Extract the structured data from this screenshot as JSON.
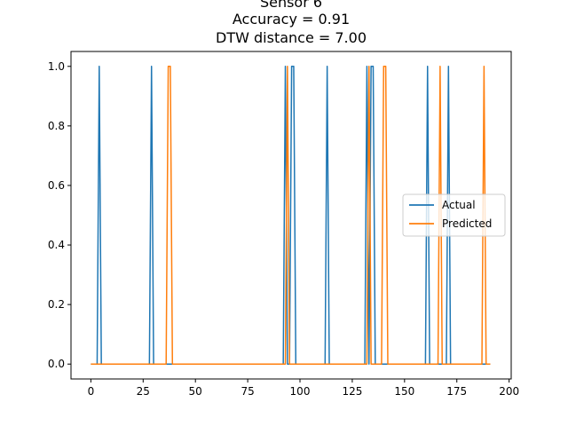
{
  "chart_data": {
    "type": "line",
    "title_lines": [
      "Sensor 6",
      "Accuracy = 0.91",
      "DTW distance = 7.00"
    ],
    "xlabel": "",
    "ylabel": "",
    "xlim": [
      -9.5,
      201
    ],
    "ylim": [
      -0.05,
      1.05
    ],
    "xticks": [
      0,
      25,
      50,
      75,
      100,
      125,
      150,
      175,
      200
    ],
    "yticks": [
      0.0,
      0.2,
      0.4,
      0.6,
      0.8,
      1.0
    ],
    "ytick_labels": [
      "0.0",
      "0.2",
      "0.4",
      "0.6",
      "0.8",
      "1.0"
    ],
    "grid": false,
    "legend": "center-right",
    "x_range": [
      0,
      191
    ],
    "series": [
      {
        "name": "Actual",
        "color": "#1f77b4",
        "ones": [
          4,
          29,
          93,
          96,
          97,
          113,
          132,
          134,
          135,
          161,
          171
        ]
      },
      {
        "name": "Predicted",
        "color": "#ff7f0e",
        "ones": [
          37,
          38,
          94,
          133,
          140,
          141,
          167,
          188
        ]
      }
    ]
  }
}
